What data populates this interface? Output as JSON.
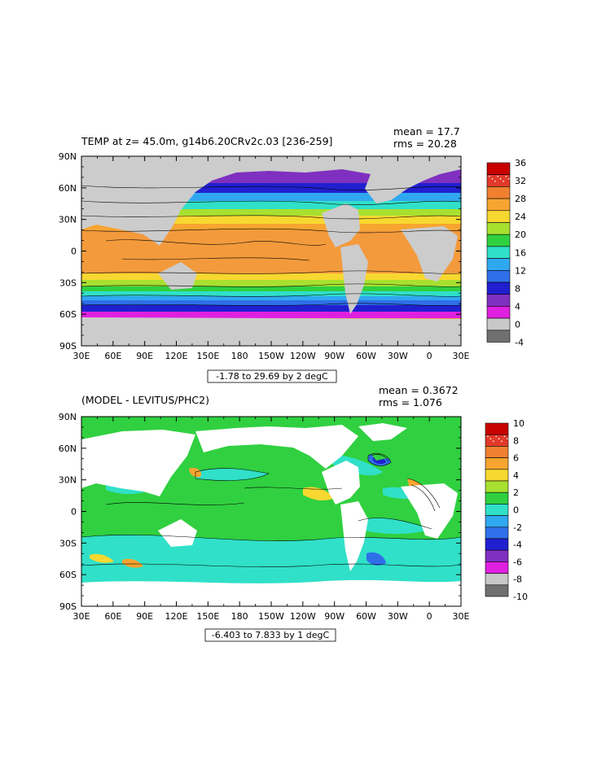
{
  "top_panel": {
    "title": "TEMP at z=  45.0m, g14b6.20CRv2c.03 [236-259]",
    "stats": {
      "mean": "mean = 17.7",
      "rms": "rms = 20.28"
    },
    "contour_info": "-1.78 to 29.69 by 2 degC",
    "x_ticks": [
      "30E",
      "60E",
      "90E",
      "120E",
      "150E",
      "180",
      "150W",
      "120W",
      "90W",
      "60W",
      "30W",
      "0",
      "30E"
    ],
    "y_ticks": [
      "90N",
      "60N",
      "30N",
      "0",
      "30S",
      "60S",
      "90S"
    ],
    "colorbar_labels": [
      "36",
      "32",
      "28",
      "24",
      "20",
      "16",
      "12",
      "8",
      "4",
      "0",
      "-4"
    ],
    "colorbar_colors": [
      "#c80000",
      "#e23a2a",
      "#f08030",
      "#f7a530",
      "#f7d830",
      "#a8e030",
      "#30d040",
      "#30e0c8",
      "#30a8f0",
      "#2f6fe8",
      "#2020d0",
      "#8030c0",
      "#e020e0",
      "#c8c8c8",
      "#707070"
    ]
  },
  "bottom_panel": {
    "title": "(MODEL - LEVITUS/PHC2)",
    "stats": {
      "mean": "mean = 0.3672",
      "rms": "rms = 1.076"
    },
    "contour_info": "-6.403 to 7.833 by 1 degC",
    "x_ticks": [
      "30E",
      "60E",
      "90E",
      "120E",
      "150E",
      "180",
      "150W",
      "120W",
      "90W",
      "60W",
      "30W",
      "0",
      "30E"
    ],
    "y_ticks": [
      "90N",
      "60N",
      "30N",
      "0",
      "30S",
      "60S",
      "90S"
    ],
    "colorbar_labels": [
      "10",
      "8",
      "6",
      "4",
      "2",
      "0",
      "-2",
      "-4",
      "-6",
      "-8",
      "-10"
    ],
    "colorbar_colors": [
      "#c80000",
      "#e23a2a",
      "#f08030",
      "#f7a530",
      "#f7d830",
      "#a8e030",
      "#30d040",
      "#30e0c8",
      "#30a8f0",
      "#2f6fe8",
      "#2020d0",
      "#8030c0",
      "#e020e0",
      "#c8c8c8",
      "#707070"
    ]
  }
}
